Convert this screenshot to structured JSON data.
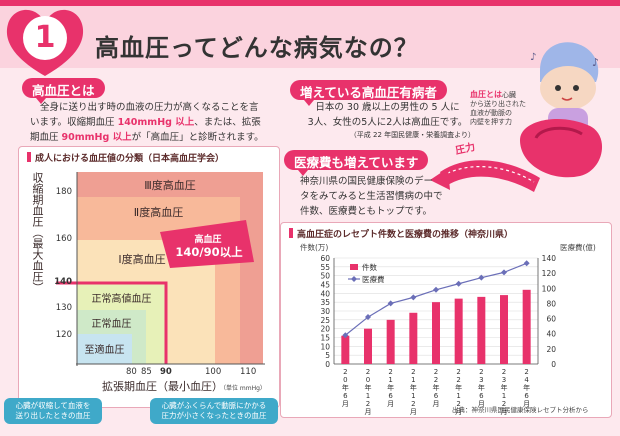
{
  "header": {
    "number": "1",
    "title": "高血圧ってどんな病気なの？"
  },
  "section1": {
    "label": "高血圧とは",
    "line1": "全身に送り出す時の血液の圧力が高くなることを言",
    "line2a": "います。収縮期血圧 ",
    "line2b": "140mmHg 以上",
    "line2c": "、または、拡張",
    "line3a": "期血圧 ",
    "line3b": "90mmHg 以上",
    "line3c": "が「高血圧」と診断されます。"
  },
  "bp_chart": {
    "title": "成人における血圧値の分類（日本高血圧学会）",
    "ylabel": "収縮期血圧（最大血圧）",
    "xlabel": "拡張期血圧（最小血圧）",
    "unit": "（単位 mmHg）",
    "yticks": [
      "180",
      "160",
      "140",
      "130",
      "120"
    ],
    "xticks": [
      "80",
      "85",
      "90",
      "100",
      "110"
    ],
    "zones": [
      "Ⅲ度高血圧",
      "Ⅱ度高血圧",
      "Ⅰ度高血圧",
      "正常高値血圧",
      "正常血圧",
      "至適血圧"
    ],
    "badge_line1": "高血圧",
    "badge_line2": "140/90以上",
    "callout_left": [
      "心臓が収縮して血液を",
      "送り出したときの血圧"
    ],
    "callout_right": [
      "心臓がふくらんで動脈にかかる",
      "圧力が小さくなったときの血圧"
    ]
  },
  "section2": {
    "label": "増えている高血圧有病者",
    "line1": "日本の 30 歳以上の男性の 5 人に",
    "line2": "3人、女性の5人に2人は高血圧です。",
    "note": "（平成 22 年国民健康・栄養調査より）"
  },
  "illustration": {
    "caption_em": "血圧とは",
    "caption_rest1": "心臓",
    "caption2": "から送り出された",
    "caption3": "血液が動脈の",
    "caption4": "内壁を押す力",
    "arrow_label": "圧力"
  },
  "section3": {
    "label": "医療費も増えています",
    "line1": "神奈川県の国民健康保険のデー",
    "line2": "タをみてみると生活習慣病の中で",
    "line3": "件数、医療費ともトップです。"
  },
  "combo_chart_text": {
    "title": "高血圧症のレセプト件数と医療費の推移（神奈川県）",
    "left_unit": "件数(万)",
    "right_unit": "医療費(億)",
    "legend_bar": "件数",
    "legend_line": "医療費",
    "source": "出典：神奈川県国民健康保険レセプト分析から"
  },
  "chart_data": [
    {
      "type": "bar",
      "categories": [
        "20年6月",
        "20年12月",
        "21年6月",
        "21年12月",
        "22年6月",
        "22年12月",
        "23年6月",
        "23年12月",
        "24年6月"
      ],
      "series": [
        {
          "name": "件数",
          "axis": "left",
          "values": [
            16,
            20,
            25,
            29,
            35,
            37,
            38,
            39,
            42
          ]
        },
        {
          "name": "医療費",
          "axis": "right",
          "type": "line",
          "values": [
            38,
            62,
            80,
            88,
            98,
            106,
            114,
            121,
            133
          ]
        }
      ],
      "ylim": [
        0,
        60
      ],
      "y2lim": [
        0,
        140
      ],
      "yticks": [
        0,
        5,
        10,
        15,
        20,
        25,
        30,
        35,
        40,
        45,
        50,
        55,
        60
      ],
      "y2ticks": [
        0,
        20,
        40,
        60,
        80,
        100,
        120,
        140
      ],
      "ylabel": "件数(万)",
      "y2label": "医療費(億)",
      "grid": true,
      "legend": "top-left",
      "colors": {
        "bar": "#e8326b",
        "line": "#6b6fb8"
      }
    }
  ]
}
